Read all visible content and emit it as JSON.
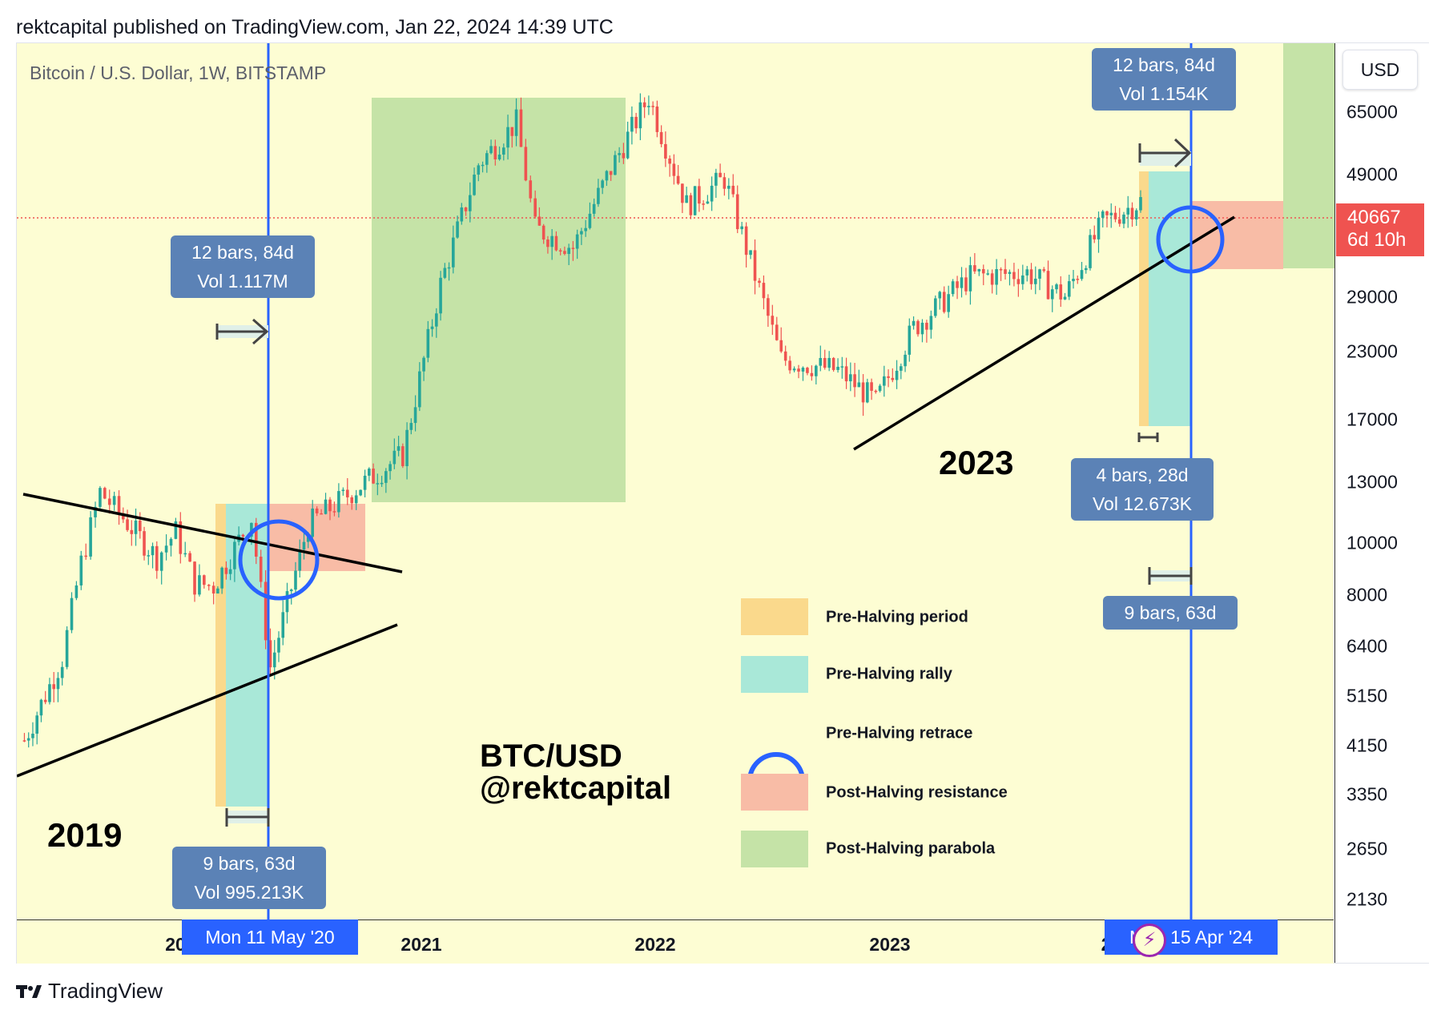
{
  "header": {
    "published": "rektcapital published on TradingView.com, Jan 22, 2024 14:39 UTC"
  },
  "symbol_title": "Bitcoin / U.S. Dollar, 1W, BITSTAMP",
  "scale_currency": "USD",
  "current_price": {
    "value": "40667",
    "countdown": "6d 10h"
  },
  "price_ticks": [
    "65000",
    "49000",
    "40667",
    "29000",
    "23000",
    "17000",
    "13000",
    "10000",
    "8000",
    "6400",
    "5150",
    "4150",
    "3350",
    "2650",
    "2130"
  ],
  "year_ticks": [
    "20",
    "2021",
    "2022",
    "2023",
    "2"
  ],
  "date_tags": {
    "left": "Mon 11 May '20",
    "right": "Mon 15 Apr '24"
  },
  "measure_bubbles": [
    {
      "line1": "12 bars, 84d",
      "line2": "Vol 1.117M"
    },
    {
      "line1": "9 bars, 63d",
      "line2": "Vol 995.213K"
    },
    {
      "line1": "12 bars, 84d",
      "line2": "Vol 1.154K"
    },
    {
      "line1": "4 bars, 28d",
      "line2": "Vol 12.673K"
    },
    {
      "line1": "9 bars, 63d",
      "line2": ""
    }
  ],
  "annotations": {
    "year_2019": "2019",
    "year_2023": "2023",
    "watermark_1": "BTC/USD",
    "watermark_2": "@rektcapital"
  },
  "legend": [
    {
      "label": "Pre-Halving period",
      "color": "#fad98c"
    },
    {
      "label": "Pre-Halving rally",
      "color": "#a9e8d8"
    },
    {
      "label": "Pre-Halving retrace",
      "color": "#2962ff"
    },
    {
      "label": "Post-Halving resistance",
      "color": "#f8bca6"
    },
    {
      "label": "Post-Halving parabola",
      "color": "#c5e3a7"
    }
  ],
  "footer": {
    "brand": "TradingView"
  },
  "colors": {
    "up": "#26a69a",
    "down": "#ef5350",
    "halving_line": "#2962ff",
    "background": "#fdfdd3"
  },
  "chart_data": {
    "type": "candlestick",
    "title": "Bitcoin / U.S. Dollar, 1W, BITSTAMP",
    "y_scale": "log",
    "ylim": [
      2000,
      75000
    ],
    "approx_weekly_close": [
      {
        "x": "2019-02",
        "y": 3600
      },
      {
        "x": "2019-04",
        "y": 5200
      },
      {
        "x": "2019-05",
        "y": 8000
      },
      {
        "x": "2019-06",
        "y": 11000
      },
      {
        "x": "2019-07",
        "y": 10000
      },
      {
        "x": "2019-09",
        "y": 8200
      },
      {
        "x": "2019-10",
        "y": 9200
      },
      {
        "x": "2019-11",
        "y": 7300
      },
      {
        "x": "2019-12",
        "y": 7200
      },
      {
        "x": "2020-02",
        "y": 9800
      },
      {
        "x": "2020-03",
        "y": 5000
      },
      {
        "x": "2020-05",
        "y": 9500
      },
      {
        "x": "2020-08",
        "y": 11500
      },
      {
        "x": "2020-10",
        "y": 13000
      },
      {
        "x": "2020-12",
        "y": 28000
      },
      {
        "x": "2021-02",
        "y": 48000
      },
      {
        "x": "2021-04",
        "y": 58000
      },
      {
        "x": "2021-05",
        "y": 36000
      },
      {
        "x": "2021-07",
        "y": 33000
      },
      {
        "x": "2021-09",
        "y": 47000
      },
      {
        "x": "2021-11",
        "y": 65000
      },
      {
        "x": "2022-01",
        "y": 40000
      },
      {
        "x": "2022-03",
        "y": 45000
      },
      {
        "x": "2022-06",
        "y": 20000
      },
      {
        "x": "2022-09",
        "y": 19000
      },
      {
        "x": "2022-11",
        "y": 16500
      },
      {
        "x": "2023-01",
        "y": 23000
      },
      {
        "x": "2023-04",
        "y": 29000
      },
      {
        "x": "2023-07",
        "y": 29500
      },
      {
        "x": "2023-09",
        "y": 26500
      },
      {
        "x": "2023-11",
        "y": 37000
      },
      {
        "x": "2024-01",
        "y": 40667
      }
    ],
    "halving_markers": [
      "Mon 11 May '20",
      "Mon 15 Apr '24"
    ]
  }
}
